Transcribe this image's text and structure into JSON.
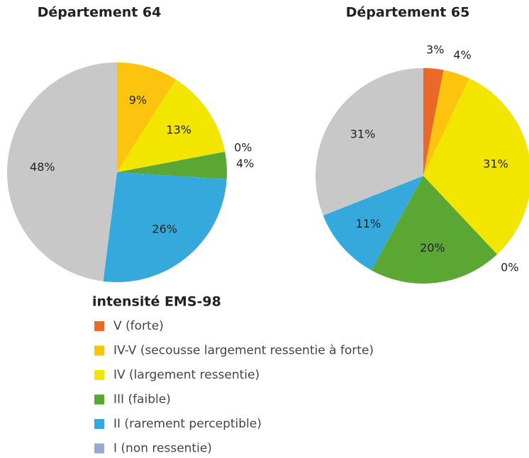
{
  "chart_data": [
    {
      "type": "pie",
      "title": "Département 64",
      "values": [
        9,
        13,
        0,
        4,
        26,
        48
      ],
      "value_labels": [
        "9%",
        "13%",
        "0%",
        "4%",
        "26%",
        "48%"
      ],
      "colors": [
        "#fcc30f",
        "#f2e500",
        null,
        "#5aa833",
        "#35a9dc",
        "#c8c8c8"
      ]
    },
    {
      "type": "pie",
      "title": "Département 65",
      "values": [
        3,
        4,
        31,
        0,
        20,
        11,
        31
      ],
      "value_labels": [
        "3%",
        "4%",
        "31%",
        "0%",
        "20%",
        "11%",
        "31%"
      ],
      "colors": [
        "#e8692a",
        "#fcc30f",
        "#f2e500",
        null,
        "#5aa833",
        "#35a9dc",
        "#c8c8c8"
      ]
    }
  ],
  "legend": {
    "title": "intensité EMS-98",
    "items": [
      {
        "label": "V (forte)",
        "color": "#e8692a"
      },
      {
        "label": "IV-V (secousse largement ressentie à forte)",
        "color": "#fcc30f"
      },
      {
        "label": "IV (largement ressentie)",
        "color": "#f2e500"
      },
      {
        "label": "III (faible)",
        "color": "#5aa833"
      },
      {
        "label": "II (rarement perceptible)",
        "color": "#35a9dc"
      },
      {
        "label": "I (non ressentie)",
        "color": "#99a8cf"
      }
    ]
  }
}
